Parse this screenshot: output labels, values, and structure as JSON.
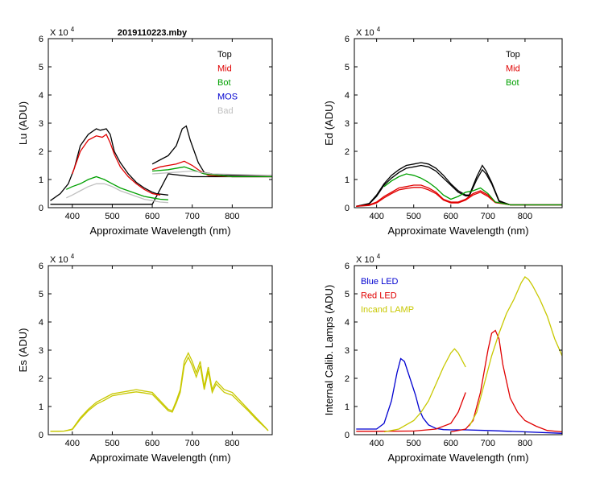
{
  "page_title": "2019110223.mby",
  "chart_data": [
    {
      "id": "lu",
      "type": "line",
      "title": "2019110223.mby",
      "ylabel": "Lu (ADU)",
      "xlabel": "Approximate Wavelength (nm)",
      "xlim": [
        340,
        900
      ],
      "ylim": [
        0,
        6
      ],
      "exponent_label": "X 10",
      "exponent_power": "4",
      "xticks": [
        400,
        500,
        600,
        700,
        800
      ],
      "yticks": [
        0,
        1,
        2,
        3,
        4,
        5,
        6
      ],
      "legend": [
        "Top",
        "Mid",
        "Bot",
        "MOS",
        "Bad"
      ],
      "legend_colors": [
        "#000000",
        "#e00000",
        "#00a000",
        "#0000d0",
        "#c0c0c0"
      ],
      "series": [
        {
          "name": "Top",
          "color": "#000000",
          "x": [
            345,
            370,
            390,
            405,
            420,
            440,
            460,
            470,
            485,
            495,
            505,
            520,
            540,
            560,
            580,
            600,
            610,
            640
          ],
          "y": [
            0.25,
            0.5,
            0.85,
            1.4,
            2.2,
            2.6,
            2.8,
            2.75,
            2.8,
            2.6,
            2.0,
            1.6,
            1.2,
            0.9,
            0.7,
            0.55,
            0.5,
            0.45
          ]
        },
        {
          "name": "Top",
          "color": "#000000",
          "x": [
            600,
            620,
            640,
            660,
            675,
            685,
            695,
            705,
            715,
            730,
            750,
            800,
            900
          ],
          "y": [
            1.55,
            1.7,
            1.85,
            2.2,
            2.8,
            2.9,
            2.4,
            2.0,
            1.6,
            1.25,
            1.2,
            1.15,
            1.15
          ]
        },
        {
          "name": "Top",
          "color": "#000000",
          "x": [
            345,
            400,
            500,
            600,
            640,
            700,
            800,
            900
          ],
          "y": [
            0.12,
            0.12,
            0.12,
            0.12,
            1.2,
            1.1,
            1.1,
            1.1
          ]
        },
        {
          "name": "Mid",
          "color": "#e00000",
          "x": [
            400,
            420,
            440,
            460,
            475,
            485,
            495,
            505,
            520,
            540,
            560,
            580,
            600,
            620
          ],
          "y": [
            1.2,
            2.0,
            2.4,
            2.55,
            2.5,
            2.6,
            2.3,
            1.9,
            1.45,
            1.1,
            0.85,
            0.65,
            0.5,
            0.45
          ]
        },
        {
          "name": "Mid",
          "color": "#e00000",
          "x": [
            600,
            620,
            640,
            660,
            680,
            700,
            720,
            740,
            800,
            900
          ],
          "y": [
            1.35,
            1.45,
            1.5,
            1.55,
            1.65,
            1.5,
            1.3,
            1.15,
            1.1,
            1.1
          ]
        },
        {
          "name": "Bot",
          "color": "#00a000",
          "x": [
            385,
            400,
            420,
            440,
            460,
            480,
            500,
            520,
            540,
            560,
            580,
            600,
            620,
            640
          ],
          "y": [
            0.65,
            0.75,
            0.85,
            1.0,
            1.1,
            1.0,
            0.85,
            0.7,
            0.6,
            0.5,
            0.4,
            0.35,
            0.3,
            0.28
          ]
        },
        {
          "name": "Bot",
          "color": "#00a000",
          "x": [
            600,
            640,
            680,
            700,
            730,
            800,
            900
          ],
          "y": [
            1.3,
            1.35,
            1.45,
            1.35,
            1.2,
            1.1,
            1.1
          ]
        },
        {
          "name": "Bad",
          "color": "#c0c0c0",
          "x": [
            385,
            400,
            420,
            440,
            460,
            480,
            500,
            520,
            540,
            560,
            580,
            600,
            620,
            640
          ],
          "y": [
            0.35,
            0.45,
            0.6,
            0.75,
            0.85,
            0.85,
            0.75,
            0.6,
            0.5,
            0.4,
            0.3,
            0.25,
            0.2,
            0.18
          ]
        },
        {
          "name": "Bad",
          "color": "#c0c0c0",
          "x": [
            600,
            650,
            700,
            750,
            900
          ],
          "y": [
            1.2,
            1.25,
            1.3,
            1.2,
            1.15
          ]
        }
      ]
    },
    {
      "id": "ed",
      "type": "line",
      "ylabel": "Ed  (ADU)",
      "xlabel": "Approximate Wavelength (nm)",
      "xlim": [
        340,
        900
      ],
      "ylim": [
        0,
        6
      ],
      "exponent_label": "X 10",
      "exponent_power": "4",
      "xticks": [
        400,
        500,
        600,
        700,
        800
      ],
      "yticks": [
        0,
        1,
        2,
        3,
        4,
        5,
        6
      ],
      "legend": [
        "Top",
        "Mid",
        "Bot"
      ],
      "legend_colors": [
        "#000000",
        "#e00000",
        "#00a000"
      ],
      "series": [
        {
          "name": "Top",
          "color": "#000000",
          "x": [
            345,
            380,
            400,
            420,
            440,
            460,
            480,
            500,
            520,
            540,
            560,
            580,
            600,
            620,
            640,
            650,
            670,
            685,
            695,
            710,
            730,
            760,
            800,
            900
          ],
          "y": [
            0.05,
            0.15,
            0.45,
            0.85,
            1.15,
            1.35,
            1.5,
            1.55,
            1.6,
            1.55,
            1.4,
            1.15,
            0.85,
            0.6,
            0.45,
            0.45,
            1.1,
            1.5,
            1.3,
            0.9,
            0.25,
            0.1,
            0.1,
            0.1
          ]
        },
        {
          "name": "Top",
          "color": "#000000",
          "x": [
            345,
            380,
            400,
            420,
            440,
            460,
            480,
            500,
            520,
            540,
            560,
            580,
            600,
            620,
            640,
            650,
            670,
            685,
            695,
            710,
            730,
            760,
            800,
            900
          ],
          "y": [
            0.05,
            0.13,
            0.4,
            0.8,
            1.05,
            1.25,
            1.4,
            1.45,
            1.5,
            1.45,
            1.3,
            1.05,
            0.8,
            0.55,
            0.42,
            0.42,
            1.0,
            1.35,
            1.2,
            0.85,
            0.22,
            0.1,
            0.1,
            0.1
          ]
        },
        {
          "name": "Mid",
          "color": "#e00000",
          "x": [
            345,
            380,
            400,
            420,
            440,
            460,
            480,
            500,
            520,
            540,
            560,
            580,
            600,
            620,
            640,
            660,
            680,
            700,
            720,
            760,
            800,
            900
          ],
          "y": [
            0.05,
            0.1,
            0.2,
            0.4,
            0.55,
            0.7,
            0.75,
            0.8,
            0.8,
            0.7,
            0.55,
            0.3,
            0.2,
            0.2,
            0.3,
            0.5,
            0.6,
            0.45,
            0.2,
            0.1,
            0.1,
            0.1
          ]
        },
        {
          "name": "Mid",
          "color": "#e00000",
          "x": [
            345,
            380,
            400,
            420,
            440,
            460,
            480,
            500,
            520,
            540,
            560,
            580,
            600,
            620,
            640,
            660,
            680,
            700,
            720,
            760,
            800,
            900
          ],
          "y": [
            0.05,
            0.08,
            0.17,
            0.35,
            0.5,
            0.63,
            0.68,
            0.72,
            0.72,
            0.63,
            0.5,
            0.27,
            0.17,
            0.17,
            0.27,
            0.45,
            0.55,
            0.4,
            0.18,
            0.1,
            0.1,
            0.1
          ]
        },
        {
          "name": "Bot",
          "color": "#00a000",
          "x": [
            420,
            440,
            460,
            480,
            500,
            520,
            540,
            560,
            580,
            600,
            620,
            640,
            660,
            680,
            700,
            720,
            760,
            800,
            900
          ],
          "y": [
            0.75,
            0.95,
            1.1,
            1.2,
            1.15,
            1.05,
            0.9,
            0.7,
            0.45,
            0.3,
            0.4,
            0.55,
            0.6,
            0.7,
            0.5,
            0.2,
            0.1,
            0.1,
            0.1
          ]
        }
      ]
    },
    {
      "id": "es",
      "type": "line",
      "ylabel": "Es  (ADU)",
      "xlabel": "Approximate Wavelength (nm)",
      "xlim": [
        340,
        900
      ],
      "ylim": [
        0,
        6
      ],
      "exponent_label": "X 10",
      "exponent_power": "4",
      "xticks": [
        400,
        500,
        600,
        700,
        800
      ],
      "yticks": [
        0,
        1,
        2,
        3,
        4,
        5,
        6
      ],
      "legend": [],
      "legend_colors": [],
      "series": [
        {
          "name": "Es",
          "color": "#c8c800",
          "x": [
            345,
            360,
            380,
            400,
            420,
            440,
            460,
            480,
            500,
            520,
            540,
            560,
            580,
            600,
            620,
            640,
            650,
            660,
            670,
            680,
            690,
            700,
            710,
            720,
            730,
            740,
            750,
            760,
            780,
            800,
            820,
            840,
            860,
            880,
            890
          ],
          "y": [
            0.12,
            0.12,
            0.13,
            0.2,
            0.6,
            0.9,
            1.15,
            1.3,
            1.45,
            1.5,
            1.55,
            1.6,
            1.55,
            1.5,
            1.2,
            0.9,
            0.85,
            1.2,
            1.6,
            2.6,
            2.9,
            2.6,
            2.2,
            2.6,
            1.7,
            2.4,
            1.6,
            1.9,
            1.6,
            1.5,
            1.2,
            0.9,
            0.6,
            0.3,
            0.15
          ]
        },
        {
          "name": "Es",
          "color": "#c8c800",
          "x": [
            345,
            360,
            380,
            400,
            420,
            440,
            460,
            480,
            500,
            520,
            540,
            560,
            580,
            600,
            620,
            640,
            650,
            660,
            670,
            680,
            690,
            700,
            710,
            720,
            730,
            740,
            750,
            760,
            780,
            800,
            820,
            840,
            860,
            880,
            890
          ],
          "y": [
            0.12,
            0.12,
            0.13,
            0.18,
            0.55,
            0.85,
            1.08,
            1.22,
            1.38,
            1.43,
            1.48,
            1.52,
            1.48,
            1.43,
            1.14,
            0.85,
            0.8,
            1.12,
            1.5,
            2.45,
            2.75,
            2.45,
            2.05,
            2.45,
            1.6,
            2.25,
            1.5,
            1.8,
            1.5,
            1.4,
            1.12,
            0.85,
            0.55,
            0.28,
            0.14
          ]
        }
      ]
    },
    {
      "id": "lamps",
      "type": "line",
      "ylabel": "Internal Calib. Lamps  (ADU)",
      "xlabel": "Approximate Wavelength (nm)",
      "xlim": [
        340,
        900
      ],
      "ylim": [
        0,
        6
      ],
      "exponent_label": "X 10",
      "exponent_power": "4",
      "xticks": [
        400,
        500,
        600,
        700,
        800
      ],
      "yticks": [
        0,
        1,
        2,
        3,
        4,
        5,
        6
      ],
      "legend": [
        "Blue LED",
        "Red LED",
        "Incand LAMP"
      ],
      "legend_colors": [
        "#0000d0",
        "#e00000",
        "#c8c800"
      ],
      "series": [
        {
          "name": "Blue LED",
          "color": "#0000d0",
          "x": [
            345,
            400,
            420,
            440,
            455,
            465,
            475,
            485,
            495,
            505,
            515,
            525,
            540,
            560,
            580,
            600,
            640,
            700,
            800,
            900
          ],
          "y": [
            0.2,
            0.2,
            0.4,
            1.2,
            2.2,
            2.7,
            2.6,
            2.2,
            1.8,
            1.4,
            0.9,
            0.6,
            0.35,
            0.22,
            0.18,
            0.17,
            0.17,
            0.15,
            0.1,
            0.05
          ]
        },
        {
          "name": "Red LED",
          "color": "#e00000",
          "x": [
            345,
            400,
            500,
            560,
            600,
            620,
            640
          ],
          "y": [
            0.12,
            0.12,
            0.13,
            0.2,
            0.4,
            0.8,
            1.5
          ]
        },
        {
          "name": "Red LED",
          "color": "#e00000",
          "x": [
            600,
            640,
            660,
            680,
            700,
            710,
            720,
            730,
            740,
            760,
            780,
            800,
            830,
            860,
            900
          ],
          "y": [
            0.1,
            0.2,
            0.5,
            1.5,
            3.0,
            3.6,
            3.7,
            3.4,
            2.5,
            1.3,
            0.8,
            0.5,
            0.3,
            0.15,
            0.1
          ]
        },
        {
          "name": "Incand LAMP",
          "color": "#c8c800",
          "x": [
            420,
            460,
            500,
            520,
            540,
            560,
            580,
            600,
            610,
            620,
            640
          ],
          "y": [
            0.1,
            0.2,
            0.5,
            0.8,
            1.2,
            1.8,
            2.4,
            2.9,
            3.05,
            2.9,
            2.4
          ]
        },
        {
          "name": "Incand LAMP",
          "color": "#c8c800",
          "x": [
            650,
            670,
            690,
            710,
            730,
            750,
            770,
            790,
            800,
            810,
            820,
            840,
            860,
            880,
            900
          ],
          "y": [
            0.3,
            0.8,
            1.8,
            2.8,
            3.6,
            4.3,
            4.8,
            5.4,
            5.6,
            5.5,
            5.3,
            4.8,
            4.2,
            3.4,
            2.8
          ]
        }
      ]
    }
  ]
}
